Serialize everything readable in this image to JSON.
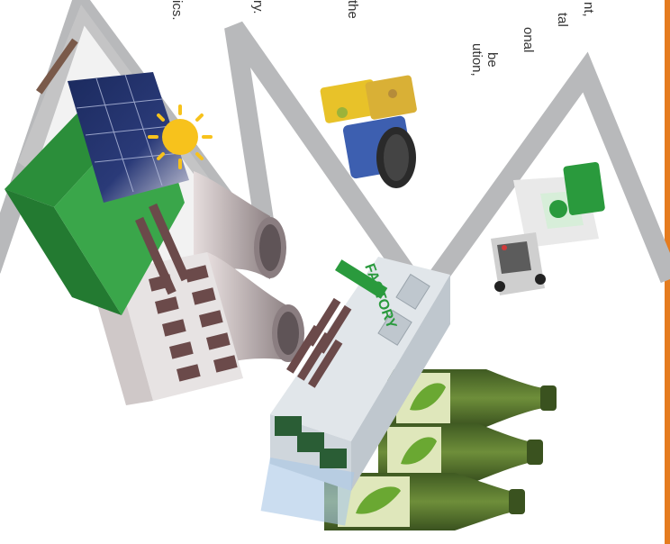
{
  "page": {
    "text_fragments": [
      "nt,",
      "tal",
      "onal",
      "be",
      "ution,",
      "the",
      "ry.",
      "ics."
    ]
  },
  "factory": {
    "sign": "FACTORY"
  },
  "colors": {
    "accent_orange": "#e57c1f",
    "mountain_grey": "#b8b9bb",
    "factory_green": "#2a9a3d",
    "solar_panel": "#1f2f63",
    "sun": "#f7c21c",
    "bottle_green": "#4f6a2a",
    "bottle_label": "#dfe7bb"
  }
}
